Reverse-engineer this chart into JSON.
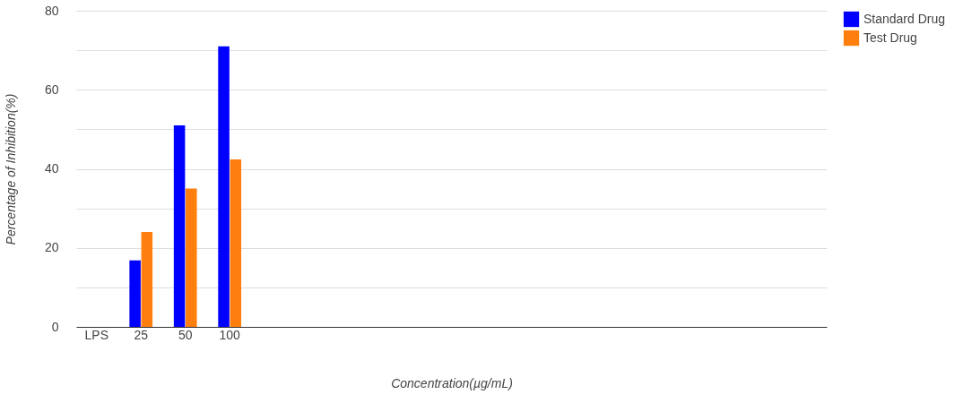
{
  "chart_data": {
    "type": "bar",
    "xlabel": "Concentration(µg/mL)",
    "ylabel": "Percentage of Inhibition(%)",
    "categories": [
      "LPS",
      "25",
      "50",
      "100",
      null,
      null,
      null,
      null,
      null,
      null,
      null,
      null,
      null,
      null,
      null,
      null,
      null
    ],
    "series": [
      {
        "name": "Standard Drug",
        "color": "#0000ff",
        "values": [
          0,
          16.8,
          51,
          71,
          0,
          0,
          0,
          0,
          0,
          0,
          0,
          0,
          0,
          0,
          0,
          0,
          0
        ]
      },
      {
        "name": "Test Drug",
        "color": "#ff7f0e",
        "values": [
          0,
          24,
          35,
          42.4,
          0,
          0,
          0,
          0,
          0,
          0,
          0,
          0,
          0,
          0,
          0,
          0,
          0
        ]
      }
    ],
    "ylim": [
      0,
      80
    ],
    "yticks": [
      0,
      {
        "value": 10,
        "label": null
      },
      20,
      {
        "value": 30,
        "label": null
      },
      40,
      {
        "value": 50,
        "label": null
      },
      60,
      {
        "value": 70,
        "label": null
      },
      80
    ],
    "grid": "y",
    "legend": "top right"
  }
}
